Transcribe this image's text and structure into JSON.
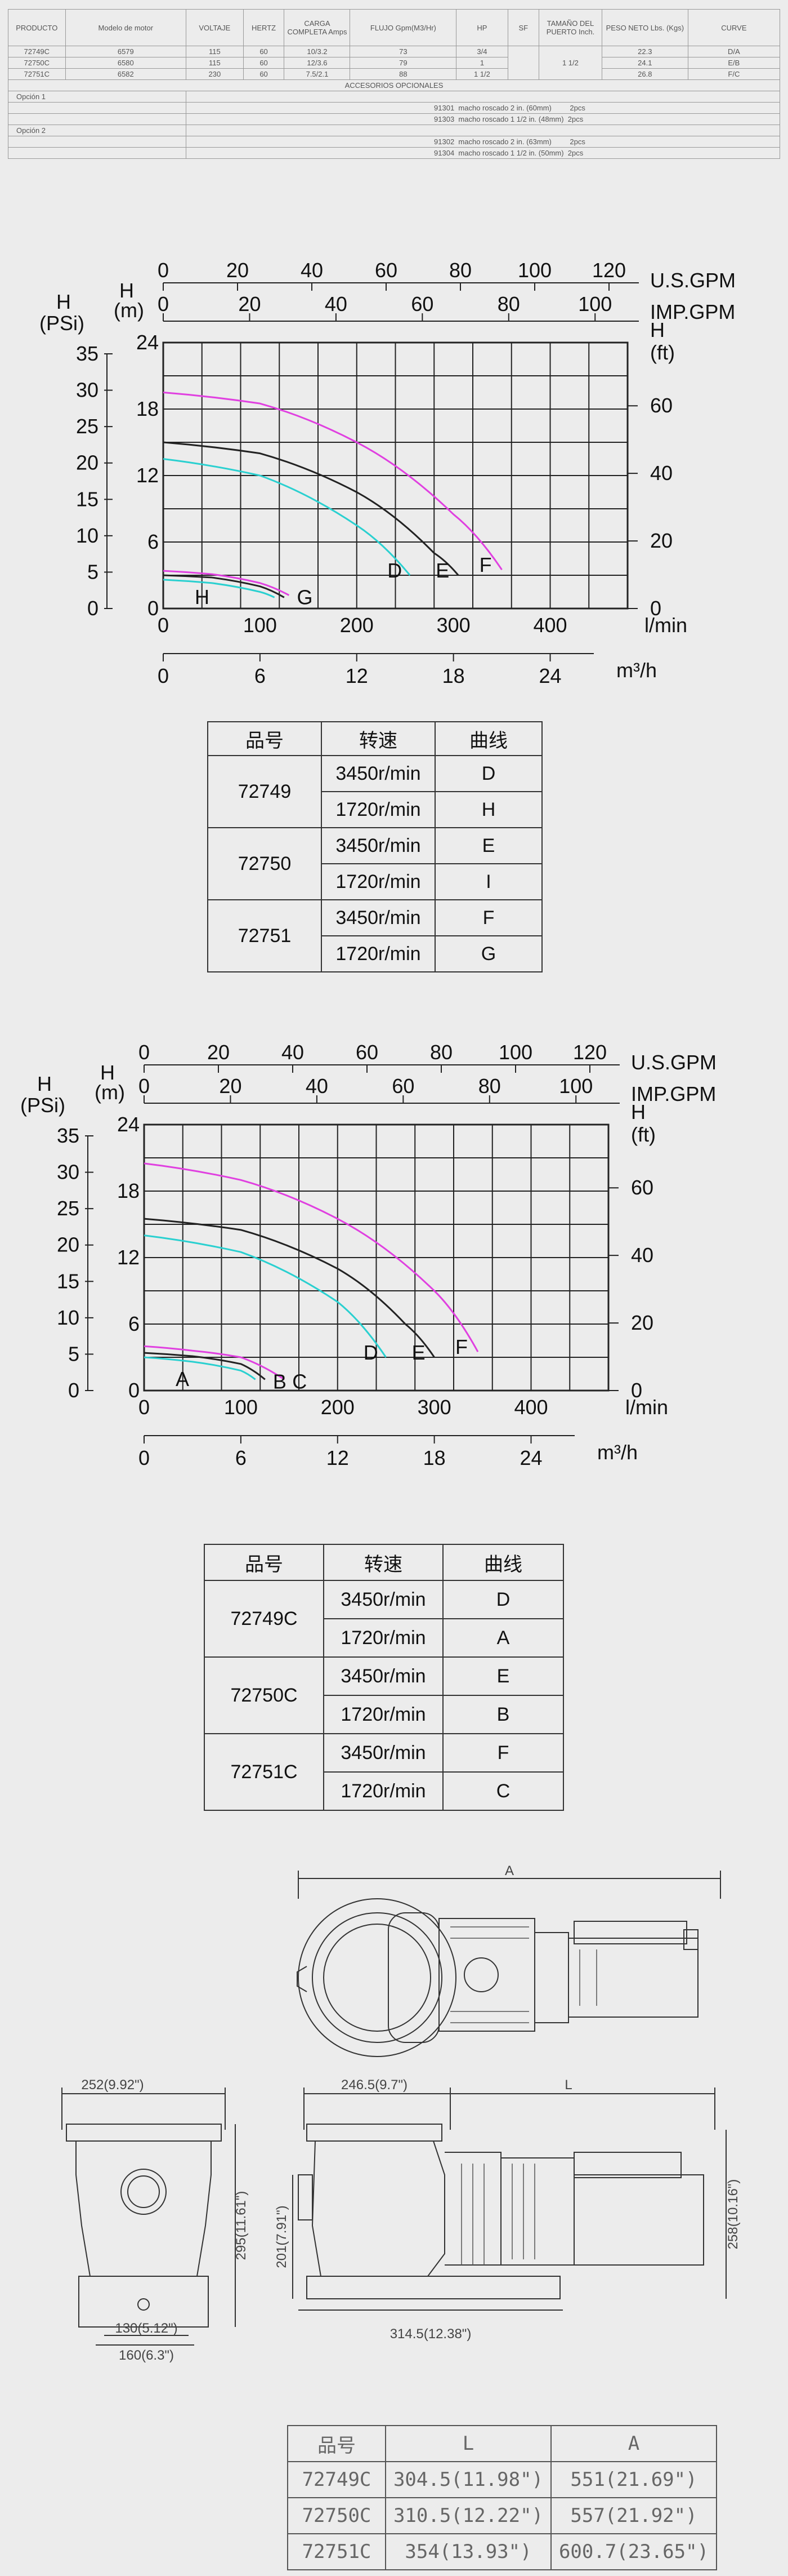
{
  "spec_table": {
    "headers": [
      "PRODUCTO",
      "Modelo de motor",
      "VOLTAJE",
      "HERTZ",
      "CARGA COMPLETA Amps",
      "FLUJO Gpm(M3/Hr)",
      "HP",
      "SF",
      "TAMAÑO DEL PUERTO Inch.",
      "PESO NETO Lbs. (Kgs)",
      "CURVE"
    ],
    "rows": [
      [
        "72749C",
        "6579",
        "115",
        "60",
        "10/3.2",
        "73",
        "3/4",
        "",
        "",
        "22.3",
        "D/A"
      ],
      [
        "72750C",
        "6580",
        "115",
        "60",
        "12/3.6",
        "79",
        "1",
        "",
        "1 1/2",
        "24.1",
        "E/B"
      ],
      [
        "72751C",
        "6582",
        "230",
        "60",
        "7.5/2.1",
        "88",
        "1 1/2",
        "",
        "",
        "26.8",
        "F/C"
      ]
    ],
    "accessories_title": "ACCESORIOS OPCIONALES",
    "option1_label": "Opción 1",
    "option1_items": [
      "91301  macho roscado 2 in. (60mm)         2pcs",
      "91303  macho roscado 1 1/2 in. (48mm)  2pcs"
    ],
    "option2_label": "Opción 2",
    "option2_items": [
      "91302  macho roscado 2 in. (63mm)         2pcs",
      "91304  macho roscado 1 1/2 in. (50mm)  2pcs"
    ]
  },
  "charts": [
    {
      "units": {
        "us_gpm": "U.S.GPM",
        "imp_gpm": "IMP.GPM",
        "h_psi": "H",
        "psi": "(PSi)",
        "h_m": "H",
        "m": "(m)",
        "h_ft": "H",
        "ft": "(ft)",
        "lmin": "l/min",
        "m3h": "m³/h"
      },
      "ticks": {
        "us_gpm": [
          "0",
          "20",
          "40",
          "60",
          "80",
          "100",
          "120"
        ],
        "imp_gpm": [
          "0",
          "20",
          "40",
          "60",
          "80",
          "100"
        ],
        "psi": [
          "35",
          "30",
          "25",
          "20",
          "15",
          "10",
          "5",
          "0"
        ],
        "m": [
          "24",
          "18",
          "12",
          "6",
          "0"
        ],
        "ft": [
          "60",
          "40",
          "20",
          "0"
        ],
        "lmin": [
          "0",
          "100",
          "200",
          "300",
          "400"
        ],
        "m3h": [
          "0",
          "6",
          "12",
          "18",
          "24"
        ]
      },
      "curve_labels": [
        "D",
        "E",
        "F",
        "G",
        "H"
      ]
    },
    {
      "units": {
        "us_gpm": "U.S.GPM",
        "imp_gpm": "IMP.GPM",
        "h_psi": "H",
        "psi": "(PSi)",
        "h_m": "H",
        "m": "(m)",
        "h_ft": "H",
        "ft": "(ft)",
        "lmin": "l/min",
        "m3h": "m³/h"
      },
      "ticks": {
        "us_gpm": [
          "0",
          "20",
          "40",
          "60",
          "80",
          "100",
          "120"
        ],
        "imp_gpm": [
          "0",
          "20",
          "40",
          "60",
          "80",
          "100"
        ],
        "psi": [
          "35",
          "30",
          "25",
          "20",
          "15",
          "10",
          "5",
          "0"
        ],
        "m": [
          "24",
          "18",
          "12",
          "6",
          "0"
        ],
        "ft": [
          "60",
          "40",
          "20",
          "0"
        ],
        "lmin": [
          "0",
          "100",
          "200",
          "300",
          "400"
        ],
        "m3h": [
          "0",
          "6",
          "12",
          "18",
          "24"
        ]
      },
      "curve_labels": [
        "D",
        "E",
        "F",
        "A",
        "B",
        "C"
      ]
    }
  ],
  "chart_data": [
    {
      "type": "line",
      "x_unit": "l/min",
      "y_unit": "m",
      "xlim": [
        0,
        480
      ],
      "ylim": [
        0,
        24
      ],
      "series": [
        {
          "name": "F",
          "color": "#e040e0",
          "x": [
            0,
            100,
            200,
            300,
            350
          ],
          "y": [
            19.5,
            18.5,
            15.0,
            8.5,
            3.5
          ]
        },
        {
          "name": "E",
          "color": "#222222",
          "x": [
            0,
            100,
            200,
            280,
            305
          ],
          "y": [
            15.0,
            14.0,
            10.5,
            5.0,
            3.0
          ]
        },
        {
          "name": "D",
          "color": "#2ad0d0",
          "x": [
            0,
            100,
            200,
            255
          ],
          "y": [
            13.5,
            12.0,
            7.5,
            3.0
          ]
        },
        {
          "name": "G",
          "color": "#e040e0",
          "x": [
            0,
            50,
            100,
            130
          ],
          "y": [
            3.4,
            3.1,
            2.3,
            1.2
          ]
        },
        {
          "name": "H",
          "color": "#2ad0d0",
          "x": [
            0,
            50,
            100,
            115
          ],
          "y": [
            2.6,
            2.3,
            1.5,
            1.0
          ]
        },
        {
          "name": "I",
          "color": "#222222",
          "x": [
            0,
            50,
            100,
            125
          ],
          "y": [
            3.0,
            2.8,
            2.0,
            1.0
          ]
        }
      ]
    },
    {
      "type": "line",
      "x_unit": "l/min",
      "y_unit": "m",
      "xlim": [
        0,
        480
      ],
      "ylim": [
        0,
        24
      ],
      "series": [
        {
          "name": "F",
          "color": "#e040e0",
          "x": [
            0,
            100,
            200,
            300,
            345
          ],
          "y": [
            20.5,
            19.0,
            15.5,
            9.0,
            3.5
          ]
        },
        {
          "name": "E",
          "color": "#222222",
          "x": [
            0,
            100,
            200,
            270,
            300
          ],
          "y": [
            15.5,
            14.5,
            11.0,
            6.0,
            3.0
          ]
        },
        {
          "name": "D",
          "color": "#2ad0d0",
          "x": [
            0,
            100,
            200,
            250
          ],
          "y": [
            14.0,
            12.5,
            8.0,
            3.0
          ]
        },
        {
          "name": "C",
          "color": "#e040e0",
          "x": [
            0,
            50,
            100,
            145
          ],
          "y": [
            4.0,
            3.6,
            3.0,
            1.0
          ]
        },
        {
          "name": "B",
          "color": "#222222",
          "x": [
            0,
            50,
            100,
            125
          ],
          "y": [
            3.4,
            3.1,
            2.4,
            1.0
          ]
        },
        {
          "name": "A",
          "color": "#2ad0d0",
          "x": [
            0,
            50,
            100,
            115
          ],
          "y": [
            3.0,
            2.6,
            1.8,
            1.0
          ]
        }
      ]
    }
  ],
  "curve_table_1": {
    "headers": [
      "品号",
      "转速",
      "曲线"
    ],
    "rows": [
      {
        "model": "72749",
        "r1": "3450r/min",
        "c1": "D",
        "r2": "1720r/min",
        "c2": "H"
      },
      {
        "model": "72750",
        "r1": "3450r/min",
        "c1": "E",
        "r2": "1720r/min",
        "c2": "I"
      },
      {
        "model": "72751",
        "r1": "3450r/min",
        "c1": "F",
        "r2": "1720r/min",
        "c2": "G"
      }
    ]
  },
  "curve_table_2": {
    "headers": [
      "品号",
      "转速",
      "曲线"
    ],
    "rows": [
      {
        "model": "72749C",
        "r1": "3450r/min",
        "c1": "D",
        "r2": "1720r/min",
        "c2": "A"
      },
      {
        "model": "72750C",
        "r1": "3450r/min",
        "c1": "E",
        "r2": "1720r/min",
        "c2": "B"
      },
      {
        "model": "72751C",
        "r1": "3450r/min",
        "c1": "F",
        "r2": "1720r/min",
        "c2": "C"
      }
    ]
  },
  "drawing": {
    "dim_A": "A",
    "dim_L": "L",
    "front_width": "252(9.92\")",
    "front_height": "295(11.61\")",
    "base_inner": "130(5.12\")",
    "base_outer": "160(6.3\")",
    "side_inlet": "246.5(9.7\")",
    "side_height1": "201(7.91\")",
    "side_height2": "258(10.16\")",
    "side_base": "314.5(12.38\")"
  },
  "dims_table": {
    "headers": [
      "品号",
      "L",
      "A"
    ],
    "rows": [
      [
        "72749C",
        "304.5(11.98\")",
        "551(21.69\")"
      ],
      [
        "72750C",
        "310.5(12.22\")",
        "557(21.92\")"
      ],
      [
        "72751C",
        "354(13.93\")",
        "600.7(23.65\")"
      ]
    ]
  }
}
